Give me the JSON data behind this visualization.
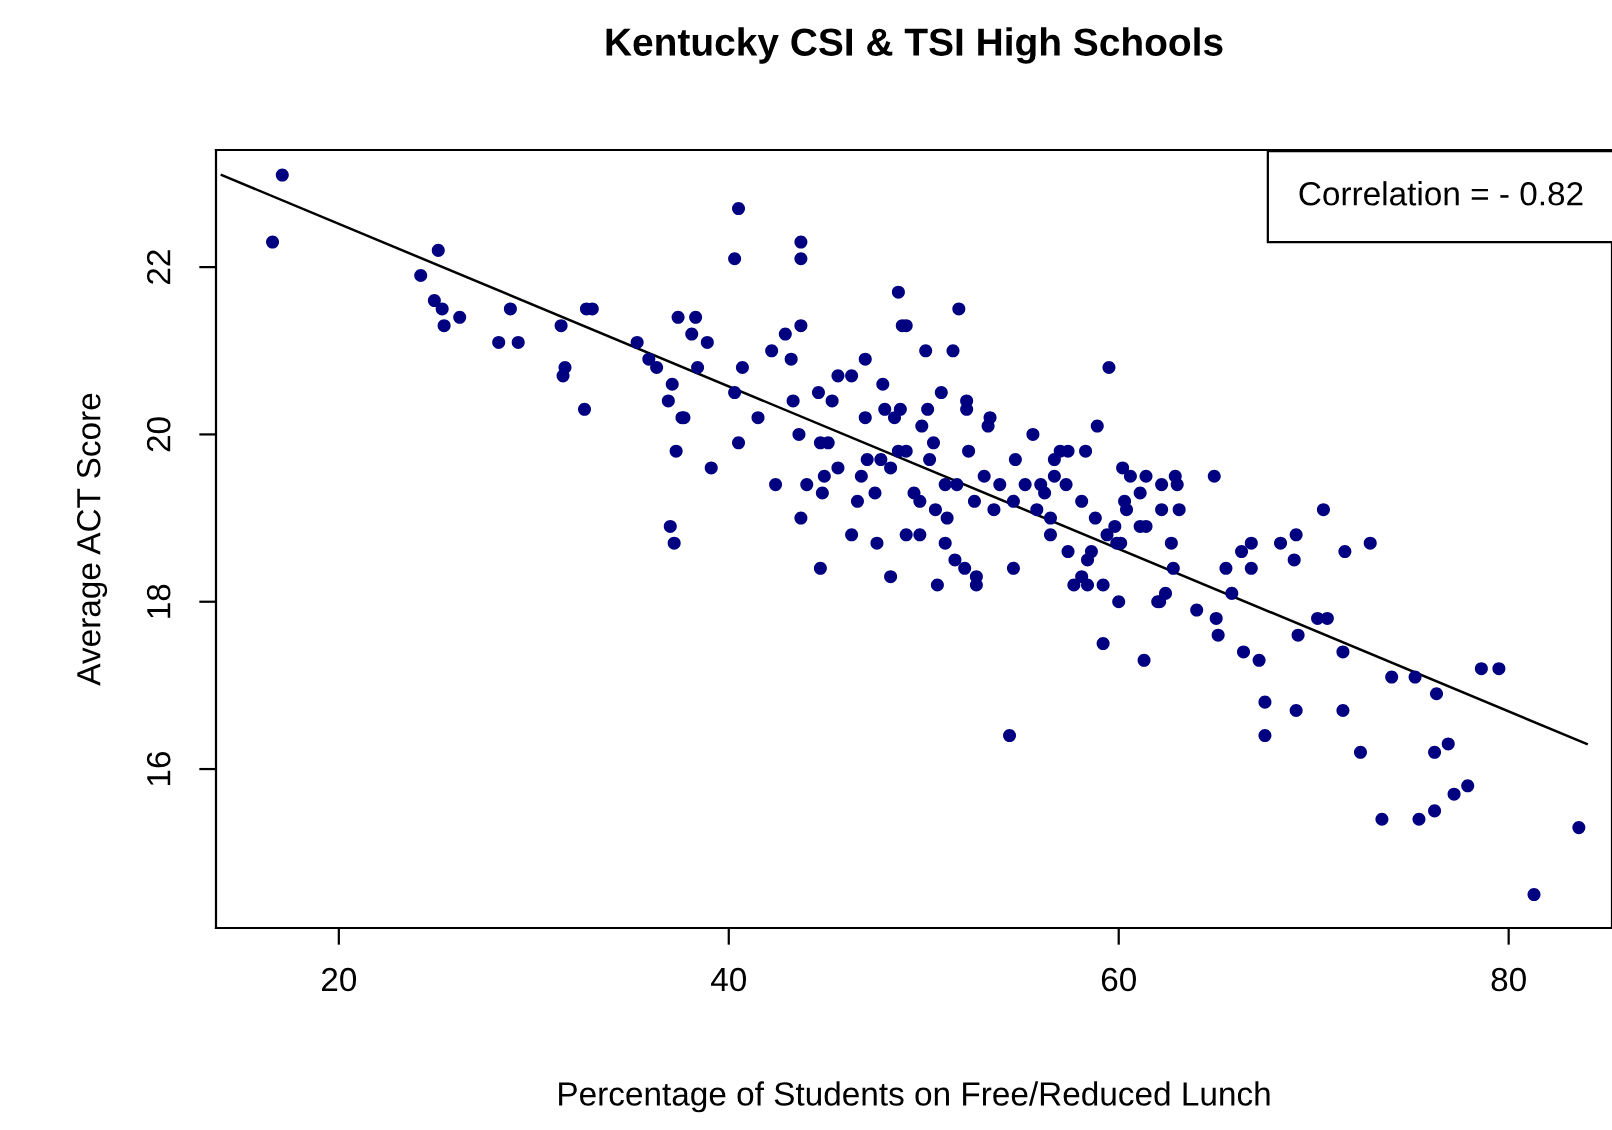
{
  "chart_data": {
    "type": "scatter",
    "title": "Kentucky CSI & TSI High Schools",
    "xlabel": "Percentage of Students on Free/Reduced Lunch",
    "ylabel": "Average ACT Score",
    "xlim": [
      13.7,
      85.3
    ],
    "ylim": [
      14.1,
      23.4
    ],
    "xticks": [
      20,
      40,
      60,
      80
    ],
    "yticks": [
      16,
      18,
      20,
      22
    ],
    "grid": false,
    "legend": false,
    "annotations": [
      "Correlation = - 0.82"
    ],
    "series": [
      {
        "marker": "circle",
        "color": "#000080",
        "x": [
          17.1,
          16.6,
          25.1,
          24.2,
          24.9,
          25.3,
          26.2,
          25.4,
          28.8,
          28.2,
          29.2,
          31.4,
          32.7,
          33.0,
          31.6,
          31.5,
          32.6,
          35.3,
          35.9,
          36.3,
          37.4,
          38.1,
          37.1,
          36.9,
          37.6,
          37.3,
          37.0,
          37.2,
          40.5,
          40.3,
          43.7,
          43.7,
          38.3,
          38.9,
          38.4,
          40.7,
          42.2,
          42.9,
          43.7,
          43.2,
          40.3,
          41.5,
          40.5,
          39.1,
          37.7,
          43.3,
          43.6,
          44.6,
          45.3,
          45.6,
          46.3,
          47.0,
          48.7,
          48.9,
          49.1,
          50.1,
          51.5,
          51.8,
          47.9,
          47.0,
          44.7,
          45.1,
          42.4,
          44.0,
          44.9,
          44.8,
          45.6,
          43.7,
          46.3,
          47.6,
          46.8,
          47.5,
          46.6,
          47.1,
          47.8,
          48.3,
          48.0,
          48.5,
          48.8,
          49.9,
          50.2,
          50.9,
          52.2,
          52.2,
          53.4,
          53.3,
          50.5,
          50.3,
          48.7,
          49.1,
          52.3,
          55.6,
          54.7,
          53.1,
          49.5,
          49.8,
          50.6,
          51.2,
          49.1,
          49.8,
          51.1,
          51.1,
          51.7,
          52.6,
          53.6,
          53.9,
          54.6,
          55.2,
          56.0,
          56.2,
          56.7,
          57.3,
          55.8,
          56.5,
          56.5,
          56.7,
          57.0,
          57.4,
          58.3,
          58.9,
          59.5,
          58.1,
          58.8,
          59.4,
          60.2,
          60.6,
          61.1,
          61.4,
          60.3,
          60.4,
          59.8,
          61.1,
          60.1,
          44.7,
          48.3,
          50.7,
          51.6,
          52.1,
          52.7,
          52.7,
          54.6,
          54.4,
          57.4,
          58.4,
          58.6,
          58.1,
          57.7,
          58.4,
          59.2,
          60.0,
          59.9,
          59.2,
          61.3,
          62.0,
          62.2,
          62.9,
          63.0,
          64.9,
          62.2,
          63.1,
          61.4,
          70.5,
          62.7,
          66.8,
          68.3,
          69.1,
          72.9,
          66.3,
          65.5,
          66.8,
          69.0,
          71.6,
          62.8,
          62.4,
          62.1,
          65.8,
          64.0,
          65.0,
          65.1,
          66.4,
          67.2,
          69.2,
          70.2,
          70.7,
          71.5,
          67.5,
          67.5,
          69.1,
          71.5,
          72.4,
          74.0,
          75.2,
          76.3,
          78.6,
          79.5,
          76.2,
          76.9,
          73.5,
          75.4,
          76.2,
          77.2,
          77.9,
          83.6,
          81.3
        ],
        "values": [
          23.1,
          22.3,
          22.2,
          21.9,
          21.6,
          21.5,
          21.4,
          21.3,
          21.5,
          21.1,
          21.1,
          21.3,
          21.5,
          21.5,
          20.8,
          20.7,
          20.3,
          21.1,
          20.9,
          20.8,
          21.4,
          21.2,
          20.6,
          20.4,
          20.2,
          19.8,
          18.9,
          18.7,
          22.7,
          22.1,
          22.3,
          22.1,
          21.4,
          21.1,
          20.8,
          20.8,
          21.0,
          21.2,
          21.3,
          20.9,
          20.5,
          20.2,
          19.9,
          19.6,
          20.2,
          20.4,
          20.0,
          20.5,
          20.4,
          20.7,
          20.7,
          20.9,
          21.7,
          21.3,
          21.3,
          21.0,
          21.0,
          21.5,
          20.6,
          20.2,
          19.9,
          19.9,
          19.4,
          19.4,
          19.5,
          19.3,
          19.6,
          19.0,
          18.8,
          18.7,
          19.5,
          19.3,
          19.2,
          19.7,
          19.7,
          19.6,
          20.3,
          20.2,
          20.3,
          20.1,
          20.3,
          20.5,
          20.4,
          20.3,
          20.2,
          20.1,
          19.9,
          19.7,
          19.8,
          19.8,
          19.8,
          20.0,
          19.7,
          19.5,
          19.3,
          19.2,
          19.1,
          19.0,
          18.8,
          18.8,
          18.7,
          19.4,
          19.4,
          19.2,
          19.1,
          19.4,
          19.2,
          19.4,
          19.4,
          19.3,
          19.5,
          19.4,
          19.1,
          19.0,
          18.8,
          19.7,
          19.8,
          19.8,
          19.8,
          20.1,
          20.8,
          19.2,
          19.0,
          18.8,
          19.6,
          19.5,
          19.3,
          19.5,
          19.2,
          19.1,
          18.9,
          18.9,
          18.7,
          18.4,
          18.3,
          18.2,
          18.5,
          18.4,
          18.3,
          18.2,
          18.4,
          16.4,
          18.6,
          18.5,
          18.6,
          18.3,
          18.2,
          18.2,
          18.2,
          18.0,
          18.7,
          17.5,
          17.3,
          18.0,
          19.4,
          19.5,
          19.4,
          19.5,
          19.1,
          19.1,
          18.9,
          19.1,
          18.7,
          18.7,
          18.7,
          18.8,
          18.7,
          18.6,
          18.4,
          18.4,
          18.5,
          18.6,
          18.4,
          18.1,
          18.0,
          18.1,
          17.9,
          17.8,
          17.6,
          17.4,
          17.3,
          17.6,
          17.8,
          17.8,
          17.4,
          16.8,
          16.4,
          16.7,
          16.7,
          16.2,
          17.1,
          17.1,
          16.9,
          17.2,
          17.2,
          16.2,
          16.3,
          15.4,
          15.4,
          15.5,
          15.7,
          15.8,
          15.3,
          14.5
        ]
      },
      {
        "type": "line",
        "color": "#000000",
        "x": [
          14.0,
          84.0
        ],
        "values": [
          23.1,
          16.3
        ]
      }
    ]
  }
}
